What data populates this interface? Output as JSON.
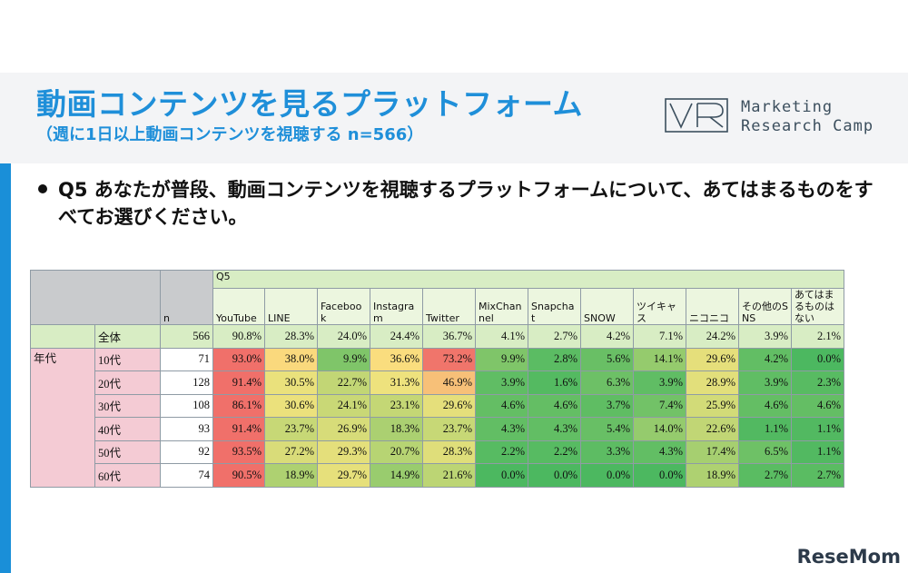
{
  "header": {
    "title": "動画コンテンツを見るプラットフォーム",
    "subtitle": "（週に1日以上動画コンテンツを視聴する n=566）"
  },
  "logo": {
    "line1": "Marketing",
    "line2": "Research Camp"
  },
  "question": "Q5 あなたが普段、動画コンテンツを視聴するプラットフォームについて、あてはまるものをすべてお選びください。",
  "table": {
    "group_label": "Q5",
    "n_label": "n",
    "columns": [
      "YouTube",
      "LINE",
      "Facebook",
      "Instagram",
      "Twitter",
      "MixChannel",
      "Snapchat",
      "SNOW",
      "ツイキャス",
      "ニコニコ",
      "その他のSNS",
      "あてはまるものはない"
    ],
    "total": {
      "label": "全体",
      "n": "566",
      "values": [
        "90.8%",
        "28.3%",
        "24.0%",
        "24.4%",
        "36.7%",
        "4.1%",
        "2.7%",
        "4.2%",
        "7.1%",
        "24.2%",
        "3.9%",
        "2.1%"
      ]
    },
    "age_label": "年代",
    "rows": [
      {
        "label": "10代",
        "n": "71",
        "values": [
          "93.0%",
          "38.0%",
          "9.9%",
          "36.6%",
          "73.2%",
          "9.9%",
          "2.8%",
          "5.6%",
          "14.1%",
          "29.6%",
          "4.2%",
          "0.0%"
        ]
      },
      {
        "label": "20代",
        "n": "128",
        "values": [
          "91.4%",
          "30.5%",
          "22.7%",
          "31.3%",
          "46.9%",
          "3.9%",
          "1.6%",
          "6.3%",
          "3.9%",
          "28.9%",
          "3.9%",
          "2.3%"
        ]
      },
      {
        "label": "30代",
        "n": "108",
        "values": [
          "86.1%",
          "30.6%",
          "24.1%",
          "23.1%",
          "29.6%",
          "4.6%",
          "4.6%",
          "3.7%",
          "7.4%",
          "25.9%",
          "4.6%",
          "4.6%"
        ]
      },
      {
        "label": "40代",
        "n": "93",
        "values": [
          "91.4%",
          "23.7%",
          "26.9%",
          "18.3%",
          "23.7%",
          "4.3%",
          "4.3%",
          "5.4%",
          "14.0%",
          "22.6%",
          "1.1%",
          "1.1%"
        ]
      },
      {
        "label": "50代",
        "n": "92",
        "values": [
          "93.5%",
          "27.2%",
          "29.3%",
          "20.7%",
          "28.3%",
          "2.2%",
          "2.2%",
          "3.3%",
          "4.3%",
          "17.4%",
          "6.5%",
          "1.1%"
        ]
      },
      {
        "label": "60代",
        "n": "74",
        "values": [
          "90.5%",
          "18.9%",
          "29.7%",
          "14.9%",
          "21.6%",
          "0.0%",
          "0.0%",
          "0.0%",
          "0.0%",
          "18.9%",
          "2.7%",
          "2.7%"
        ]
      }
    ]
  },
  "footer": {
    "brand": "ReseMom"
  },
  "colors": {
    "accent": "#1f8fd9",
    "heat_low": "#4cb860",
    "heat_mid": "#fbe57f",
    "heat_high": "#f0706a"
  }
}
